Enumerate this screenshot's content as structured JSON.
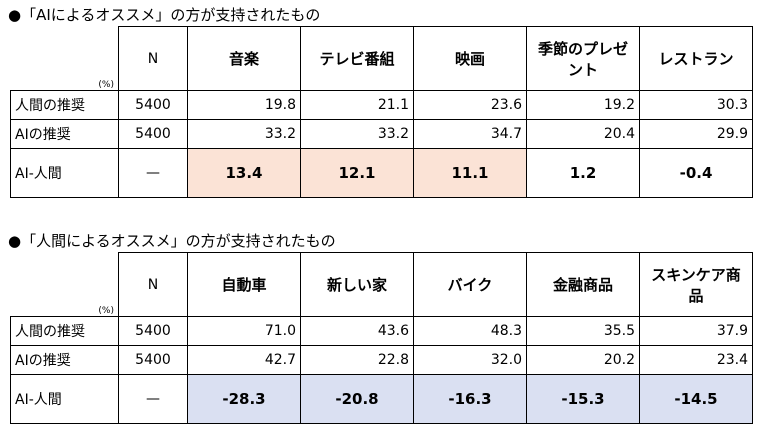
{
  "sections": [
    {
      "title": "●「AIによるオススメ」の方が支持されたもの",
      "unit": "(%)",
      "columns": [
        "N",
        "音楽",
        "テレビ番組",
        "映画",
        "季節のプレゼント",
        "レストラン"
      ],
      "rows": [
        {
          "label": "人間の推奨",
          "cells": [
            "5400",
            "19.8",
            "21.1",
            "23.6",
            "19.2",
            "30.3"
          ]
        },
        {
          "label": "AIの推奨",
          "cells": [
            "5400",
            "33.2",
            "33.2",
            "34.7",
            "20.4",
            "29.9"
          ]
        },
        {
          "label": "AI-人間",
          "cells": [
            "—",
            "13.4",
            "12.1",
            "11.1",
            "1.2",
            "-0.4"
          ]
        }
      ]
    },
    {
      "title": "●「人間によるオススメ」の方が支持されたもの",
      "unit": "(%)",
      "columns": [
        "N",
        "自動車",
        "新しい家",
        "バイク",
        "金融商品",
        "スキンケア商品"
      ],
      "rows": [
        {
          "label": "人間の推奨",
          "cells": [
            "5400",
            "71.0",
            "43.6",
            "48.3",
            "35.5",
            "37.9"
          ]
        },
        {
          "label": "AIの推奨",
          "cells": [
            "5400",
            "42.7",
            "22.8",
            "32.0",
            "20.2",
            "23.4"
          ]
        },
        {
          "label": "AI-人間",
          "cells": [
            "—",
            "-28.3",
            "-20.8",
            "-16.3",
            "-15.3",
            "-14.5"
          ]
        }
      ]
    }
  ]
}
